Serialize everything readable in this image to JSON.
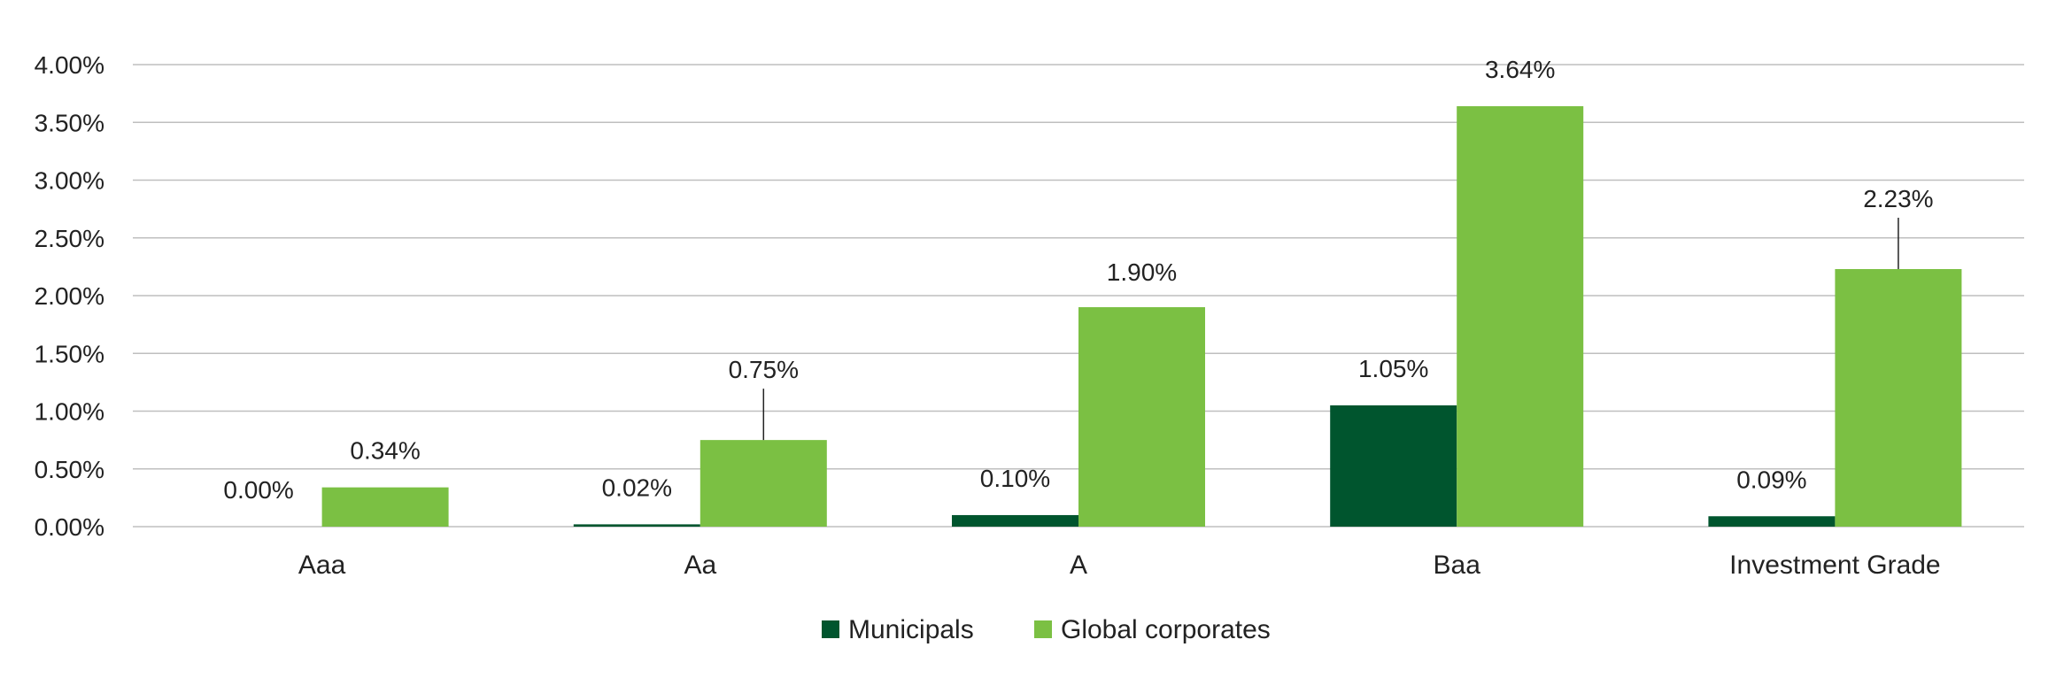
{
  "chart_data": {
    "type": "bar",
    "title": "",
    "xlabel": "",
    "ylabel": "",
    "categories": [
      "Aaa",
      "Aa",
      "A",
      "Baa",
      "Investment Grade"
    ],
    "series": [
      {
        "name": "Municipals",
        "color": "#00552e",
        "values": [
          0.0,
          0.02,
          0.1,
          1.05,
          0.09
        ],
        "labels": [
          "0.00%",
          "0.02%",
          "0.10%",
          "1.05%",
          "0.09%"
        ]
      },
      {
        "name": "Global corporates",
        "color": "#7bc043",
        "values": [
          0.34,
          0.75,
          1.9,
          3.64,
          2.23
        ],
        "labels": [
          "0.34%",
          "0.75%",
          "1.90%",
          "3.64%",
          "2.23%"
        ]
      }
    ],
    "ylim": [
      0,
      4
    ],
    "yticks": [
      0,
      0.5,
      1.0,
      1.5,
      2.0,
      2.5,
      3.0,
      3.5,
      4.0
    ],
    "ytick_labels": [
      "0.00%",
      "0.50%",
      "1.00%",
      "1.50%",
      "2.00%",
      "2.50%",
      "3.00%",
      "3.50%",
      "4.00%"
    ],
    "grid": true,
    "legend_position": "bottom-center",
    "grid_color": "#bfbfbf"
  }
}
